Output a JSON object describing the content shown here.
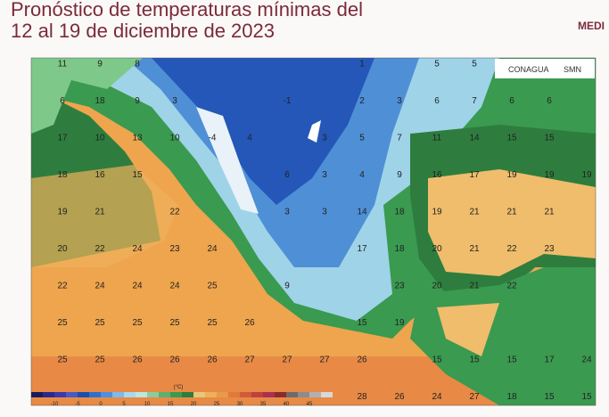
{
  "header": {
    "title_line1": "Pronóstico de temperaturas mínimas del",
    "title_line2": "12 al 19 de diciembre de 2023",
    "logo_right": "MEDI",
    "logo_conagua": "CONAGUA",
    "logo_smn": "SMN"
  },
  "map": {
    "rows": [
      [
        "11",
        "9",
        "8",
        null,
        null,
        null,
        null,
        null,
        "1",
        null,
        "5",
        "5",
        null,
        null,
        null
      ],
      [
        "6",
        "18",
        "9",
        "3",
        null,
        null,
        "-1",
        null,
        "2",
        "3",
        "6",
        "7",
        "6",
        "6",
        null
      ],
      [
        "17",
        "10",
        "13",
        "10",
        "-4",
        "4",
        null,
        "3",
        "5",
        "7",
        "11",
        "14",
        "15",
        "15",
        null
      ],
      [
        "18",
        "16",
        "15",
        null,
        null,
        null,
        "6",
        "3",
        "4",
        "9",
        "16",
        "17",
        "19",
        "19",
        "19"
      ],
      [
        "19",
        "21",
        null,
        "22",
        null,
        null,
        "3",
        "3",
        "14",
        "18",
        "19",
        "21",
        "21",
        "21",
        null
      ],
      [
        "20",
        "22",
        "24",
        "23",
        "24",
        null,
        null,
        null,
        "17",
        "18",
        "20",
        "21",
        "22",
        "23",
        null
      ],
      [
        "22",
        "24",
        "24",
        "24",
        "25",
        null,
        "9",
        null,
        null,
        "23",
        "20",
        "21",
        "22",
        null,
        null
      ],
      [
        "25",
        "25",
        "25",
        "25",
        "25",
        "26",
        null,
        null,
        "15",
        "19",
        null,
        null,
        null,
        null,
        null
      ],
      [
        "25",
        "25",
        "26",
        "26",
        "26",
        "27",
        "27",
        "27",
        "26",
        null,
        "15",
        "15",
        "15",
        "17",
        "24"
      ],
      [
        null,
        null,
        null,
        null,
        null,
        null,
        null,
        null,
        "28",
        "26",
        "24",
        "27",
        "18",
        "15",
        "15"
      ]
    ]
  },
  "colorbar": {
    "unit": "(°C)",
    "labels": [
      "-10",
      "-5",
      "0",
      "5",
      "10",
      "15",
      "20",
      "25",
      "30",
      "35",
      "40",
      "45"
    ]
  }
}
